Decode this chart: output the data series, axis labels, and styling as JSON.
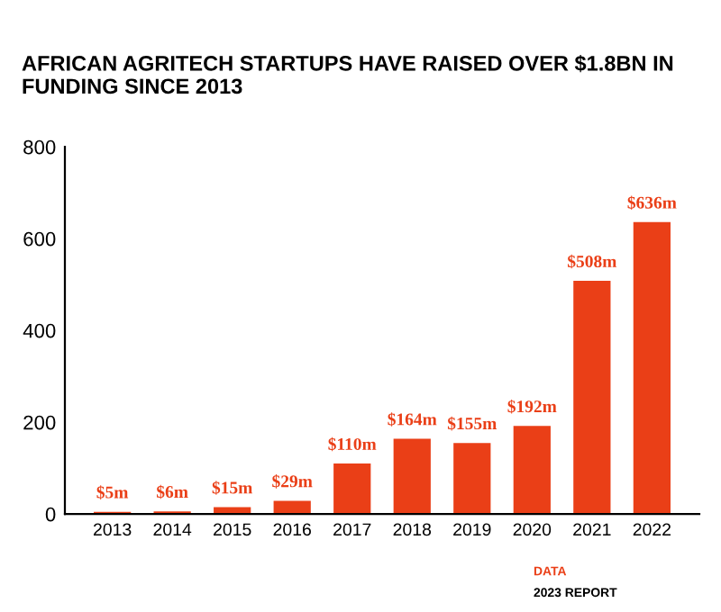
{
  "chart_data": {
    "type": "bar",
    "title": "AFRICAN AGRITECH STARTUPS HAVE RAISED OVER $1.8BN IN FUNDING SINCE 2013",
    "categories": [
      "2013",
      "2014",
      "2015",
      "2016",
      "2017",
      "2018",
      "2019",
      "2020",
      "2021",
      "2022"
    ],
    "values": [
      5,
      6,
      15,
      29,
      110,
      164,
      155,
      192,
      508,
      636
    ],
    "value_labels": [
      "$5m",
      "$6m",
      "$15m",
      "$29m",
      "$110m",
      "$164m",
      "$155m",
      "$192m",
      "$508m",
      "$636m"
    ],
    "color": "#ea3f17",
    "ylim": [
      0,
      800
    ],
    "yticks": [
      0,
      200,
      400,
      600,
      800
    ],
    "grid": false,
    "annotations": [
      "DATA",
      "2023 REPORT"
    ]
  }
}
